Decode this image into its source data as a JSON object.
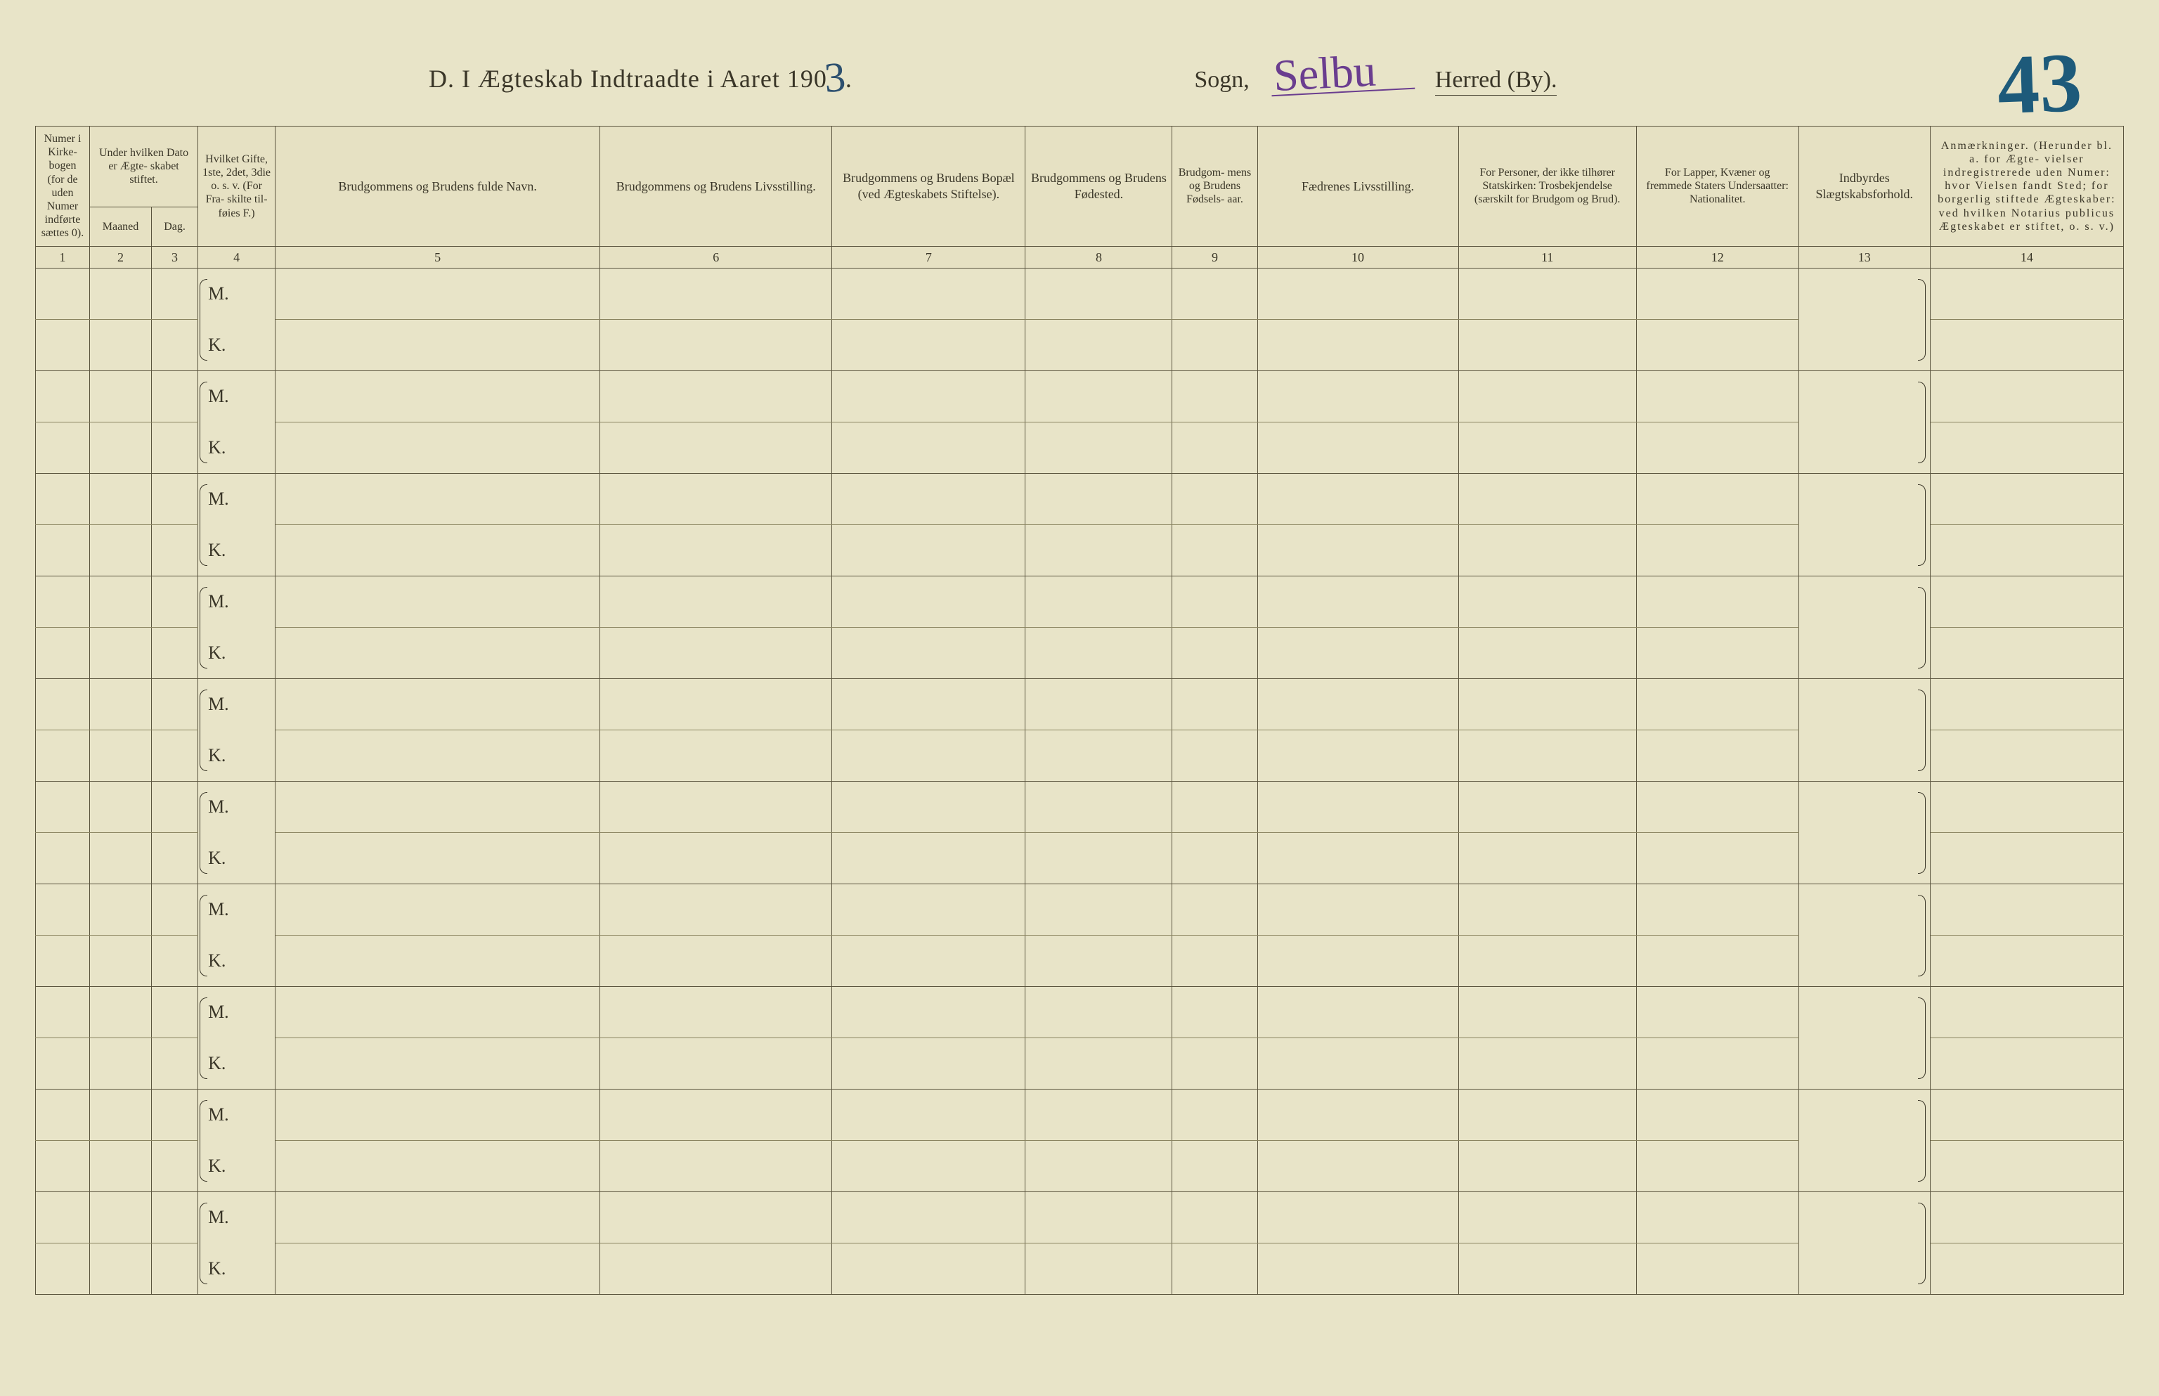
{
  "header": {
    "title_prefix": "D.  I Ægteskab Indtraadte i Aaret 190",
    "year_suffix": "3",
    "sogn_label": "Sogn,",
    "parish_name": "Selbu",
    "herred_label": "Herred (By).",
    "page_number": "43"
  },
  "columns": {
    "c1": "Numer i Kirke- bogen (for de uden Numer indførte sættes 0).",
    "c23_group": "Under hvilken Dato er Ægte- skabet stiftet.",
    "c2": "Maaned",
    "c3": "Dag.",
    "c4": "Hvilket Gifte, 1ste, 2det, 3die o. s. v. (For Fra- skilte til- føies F.)",
    "c5": "Brudgommens og Brudens fulde Navn.",
    "c6": "Brudgommens og Brudens Livsstilling.",
    "c7": "Brudgommens og Brudens Bopæl (ved Ægteskabets Stiftelse).",
    "c8": "Brudgommens og Brudens Fødested.",
    "c9": "Brudgom- mens og Brudens Fødsels- aar.",
    "c10": "Fædrenes Livsstilling.",
    "c11": "For Personer, der ikke tilhører Statskirken: Trosbekjendelse (særskilt for Brudgom og Brud).",
    "c12": "For Lapper, Kvæner og fremmede Staters Undersaatter: Nationalitet.",
    "c13": "Indbyrdes Slægtskabsforhold.",
    "c14": "Anmærkninger. (Herunder bl. a. for Ægte- vielser indregistrerede uden Numer: hvor Vielsen fandt Sted; for borgerlig stiftede Ægteskaber: ved hvilken Notarius publicus Ægteskabet er stiftet, o. s. v.)"
  },
  "colnums": [
    "1",
    "2",
    "3",
    "4",
    "5",
    "6",
    "7",
    "8",
    "9",
    "10",
    "11",
    "12",
    "13",
    "14"
  ],
  "row_labels": {
    "m": "M.",
    "k": "K."
  },
  "num_row_pairs": 10,
  "colors": {
    "paper": "#e8e4c8",
    "ink": "#3a3628",
    "rule": "#5a543e",
    "handwrite_blue": "#1d5a7a",
    "handwrite_purple": "#6a3d8f"
  }
}
